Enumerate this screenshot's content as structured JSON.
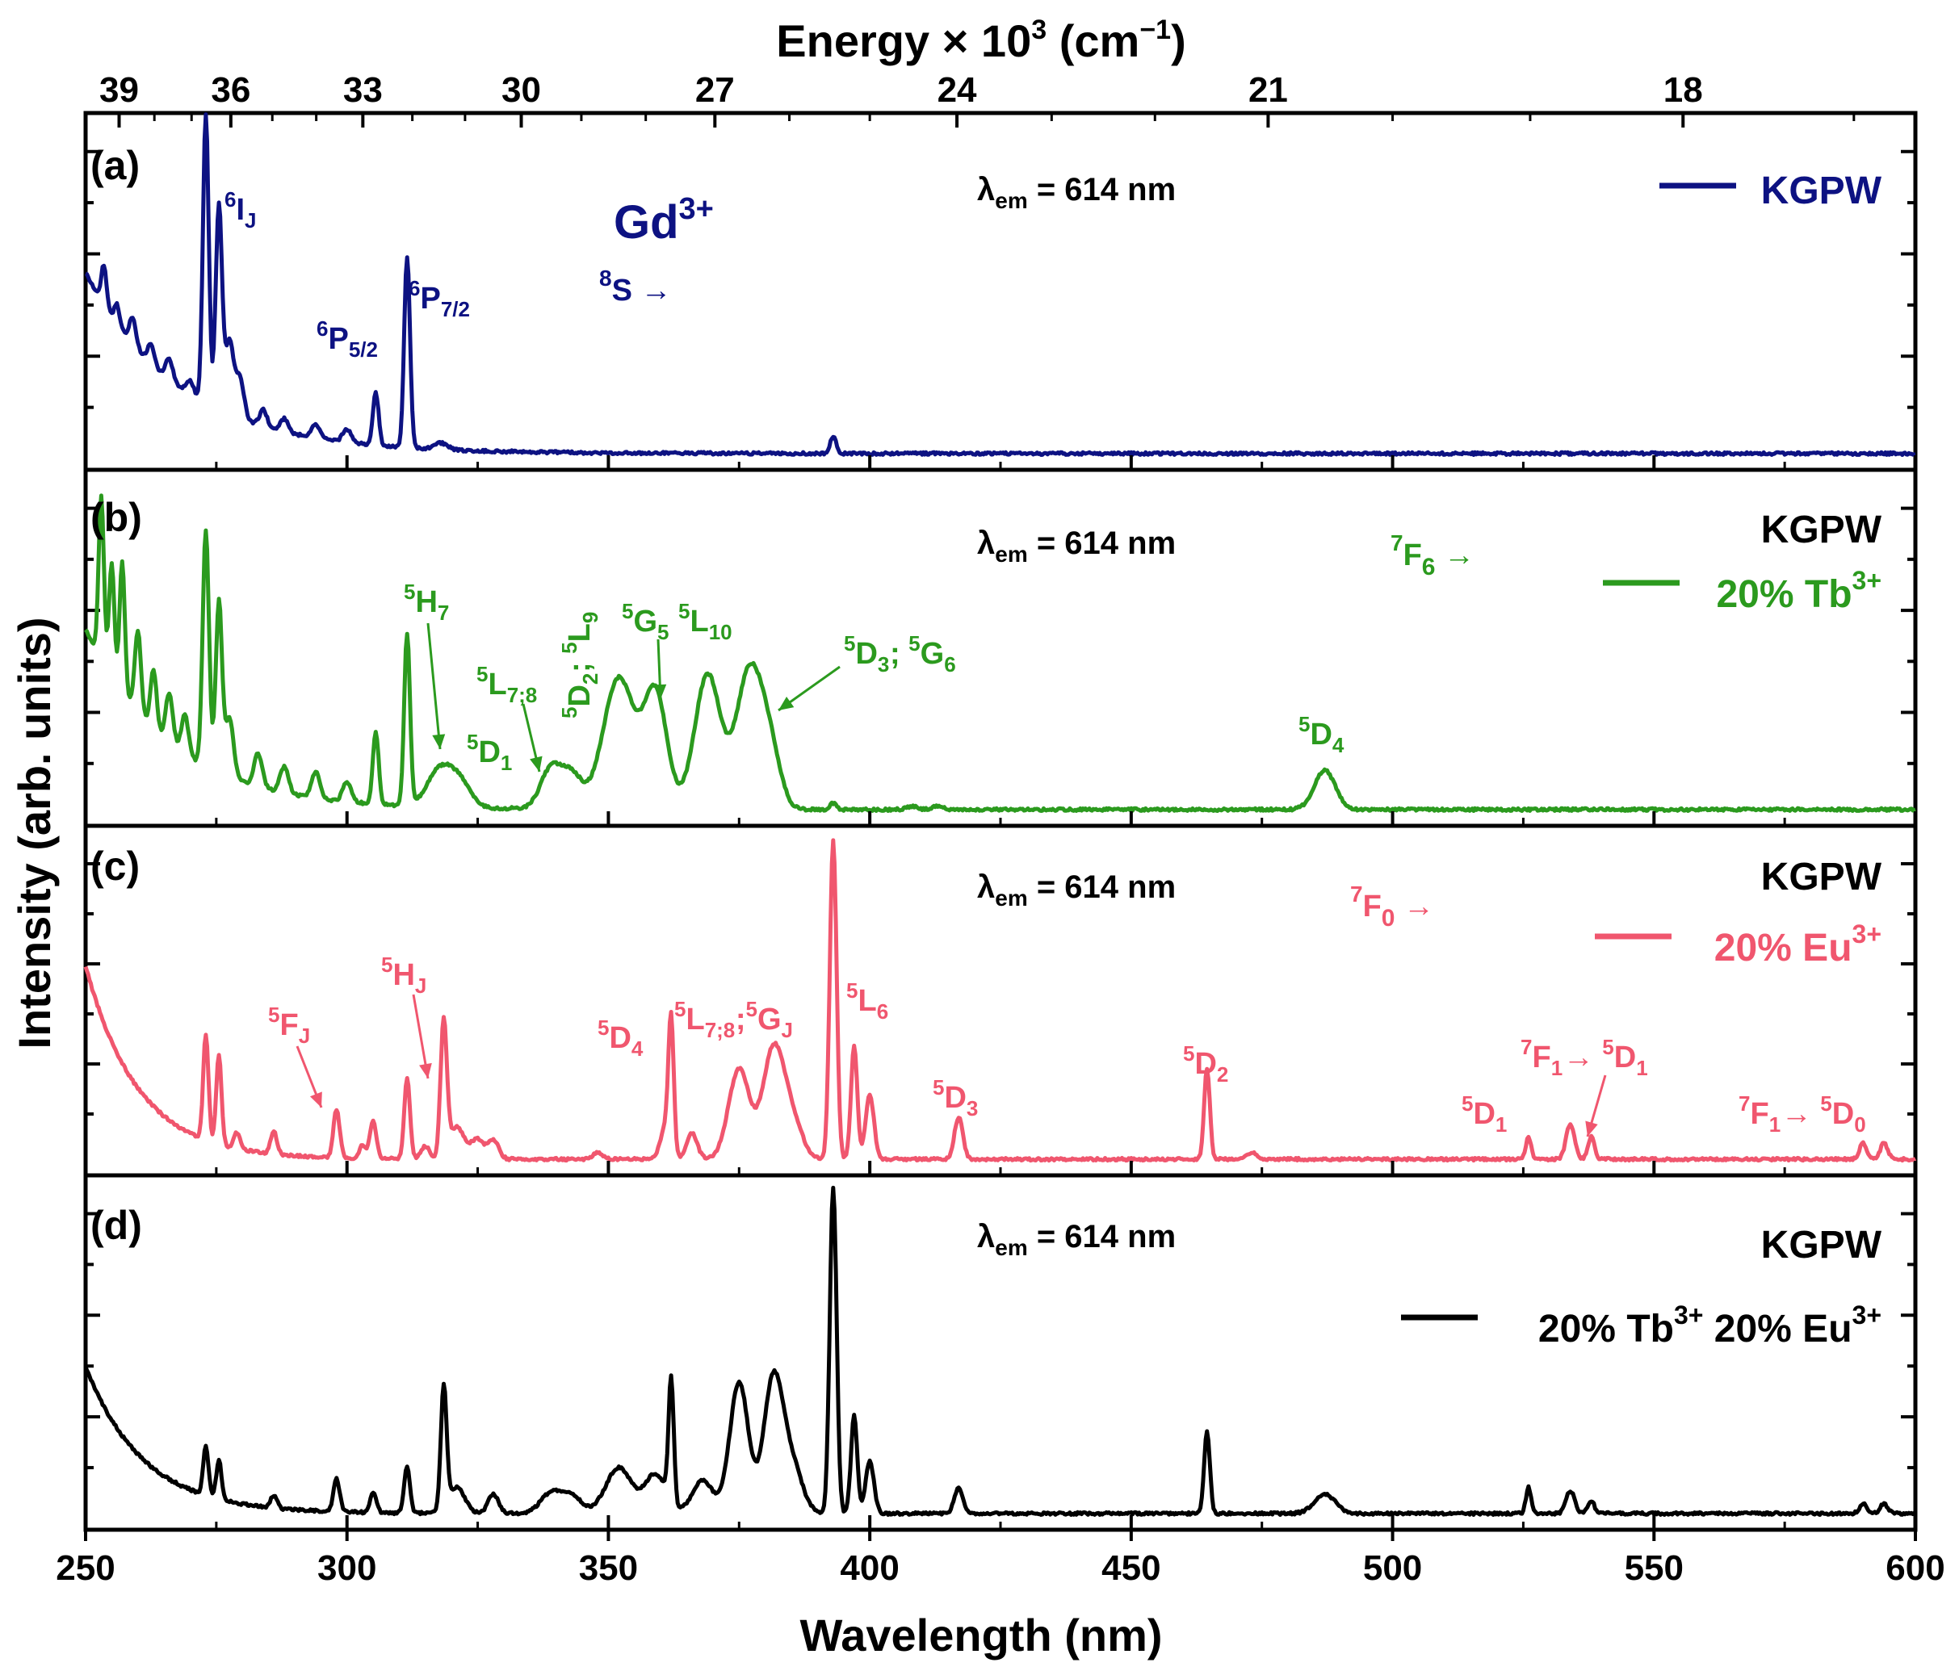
{
  "chart_data": {
    "type": "line",
    "xlabel": "Wavelength (nm)",
    "x_ticks": [
      250,
      300,
      350,
      400,
      450,
      500,
      550,
      600
    ],
    "xlim": [
      250,
      600
    ],
    "top_axis": {
      "label": "Energy × 10",
      "label_sup": "3",
      "label_unit_open": " (cm",
      "label_unit_sup": "−1",
      "label_unit_close": ")",
      "ticks": [
        39,
        36,
        33,
        30,
        27,
        24,
        21,
        18
      ]
    },
    "ylabel": "Intensity (arb. units)",
    "panels": [
      {
        "id": "a",
        "label": "(a)",
        "series_name": "KGPW",
        "color": "#0d1282",
        "excitation_note": "λem = 614 nm",
        "ion_label": "Gd3+",
        "transition_origin": "8S →",
        "baseline": 0.02,
        "decay": {
          "amp": 0.55,
          "tau": 18
        },
        "peaks": [
          [
            273,
            0.88,
            0.55
          ],
          [
            275.5,
            0.62,
            0.6
          ],
          [
            277.5,
            0.22,
            0.8
          ],
          [
            279.5,
            0.12,
            0.8
          ],
          [
            305.5,
            0.16,
            0.55
          ],
          [
            311.5,
            0.58,
            0.55
          ],
          [
            393,
            0.05,
            0.6
          ],
          [
            253.5,
            0.12,
            0.5
          ],
          [
            256,
            0.06,
            0.5
          ],
          [
            259,
            0.08,
            0.6
          ],
          [
            262.5,
            0.06,
            0.6
          ],
          [
            266,
            0.06,
            0.7
          ],
          [
            270,
            0.04,
            0.7
          ],
          [
            284,
            0.05,
            0.7
          ],
          [
            288,
            0.04,
            0.7
          ],
          [
            294,
            0.04,
            0.8
          ],
          [
            300,
            0.04,
            0.8
          ],
          [
            318,
            0.02,
            1.2
          ]
        ],
        "annotations": [
          {
            "key": "6IJ",
            "pre": "6",
            "main": "I",
            "sub": "J"
          },
          {
            "key": "6P5/2",
            "pre": "6",
            "main": "P",
            "sub": "5/2"
          },
          {
            "key": "6P7/2",
            "pre": "6",
            "main": "P",
            "sub": "7/2"
          }
        ]
      },
      {
        "id": "b",
        "label": "(b)",
        "series_name": "KGPW",
        "legend_label": "20% Tb3+",
        "color": "#2b9a1e",
        "excitation_note": "λem = 614 nm",
        "transition_origin": "7F6 →",
        "baseline": 0.02,
        "decay": {
          "amp": 0.55,
          "tau": 16
        },
        "peaks": [
          [
            273,
            0.72,
            0.6
          ],
          [
            275.5,
            0.52,
            0.6
          ],
          [
            277.5,
            0.18,
            0.8
          ],
          [
            305.5,
            0.22,
            0.55
          ],
          [
            311.5,
            0.52,
            0.55
          ],
          [
            318,
            0.12,
            2.5
          ],
          [
            322,
            0.06,
            2
          ],
          [
            339,
            0.12,
            2
          ],
          [
            343,
            0.1,
            2
          ],
          [
            352,
            0.4,
            3
          ],
          [
            359,
            0.35,
            2.2
          ],
          [
            369,
            0.41,
            2.5
          ],
          [
            377,
            0.42,
            2.5
          ],
          [
            381,
            0.15,
            2
          ],
          [
            393,
            0.02,
            0.6
          ],
          [
            487,
            0.12,
            2.0
          ],
          [
            408,
            0.01,
            1
          ],
          [
            413,
            0.01,
            1
          ],
          [
            253,
            0.5,
            0.5
          ],
          [
            255,
            0.35,
            0.5
          ],
          [
            257,
            0.4,
            0.5
          ],
          [
            260,
            0.25,
            0.6
          ],
          [
            263,
            0.18,
            0.6
          ],
          [
            266,
            0.15,
            0.7
          ],
          [
            269,
            0.12,
            0.7
          ],
          [
            283,
            0.1,
            0.8
          ],
          [
            288,
            0.08,
            0.8
          ],
          [
            294,
            0.08,
            0.8
          ],
          [
            300,
            0.06,
            0.8
          ]
        ],
        "annotations": [
          {
            "key": "5H7",
            "pre": "5",
            "main": "H",
            "sub": "7"
          },
          {
            "key": "5L7;8",
            "pre": "5",
            "main": "L",
            "sub": "7;8"
          },
          {
            "key": "5D1",
            "pre": "5",
            "main": "D",
            "sub": "1"
          },
          {
            "key": "5D2;5L9",
            "pre": "5",
            "main": "D",
            "sub": "2",
            "mid": "; ",
            "pre2": "5",
            "main2": "L",
            "sub2": "9"
          },
          {
            "key": "5G5",
            "pre": "5",
            "main": "G",
            "sub": "5"
          },
          {
            "key": "5L10",
            "pre": "5",
            "main": "L",
            "sub": "10"
          },
          {
            "key": "5D3;5G6",
            "pre": "5",
            "main": "D",
            "sub": "3",
            "mid": "; ",
            "pre2": "5",
            "main2": "G",
            "sub2": "6"
          },
          {
            "key": "5D4",
            "pre": "5",
            "main": "D",
            "sub": "4"
          }
        ]
      },
      {
        "id": "c",
        "label": "(c)",
        "series_name": "KGPW",
        "legend_label": "20% Eu3+",
        "color": "#f0566e",
        "excitation_note": "λem = 614 nm",
        "transition_origin": "7F0 →",
        "baseline": 0.02,
        "decay": {
          "amp": 0.6,
          "tau": 10
        },
        "peaks": [
          [
            273,
            0.33,
            0.5
          ],
          [
            275.5,
            0.28,
            0.5
          ],
          [
            279,
            0.05,
            0.6
          ],
          [
            286,
            0.07,
            0.6
          ],
          [
            298,
            0.15,
            0.6
          ],
          [
            305,
            0.12,
            0.6
          ],
          [
            311.5,
            0.25,
            0.55
          ],
          [
            318.5,
            0.42,
            0.6
          ],
          [
            321,
            0.1,
            1.5
          ],
          [
            328,
            0.06,
            1
          ],
          [
            348,
            0.02,
            1
          ],
          [
            361,
            0.1,
            1
          ],
          [
            362,
            0.4,
            0.5
          ],
          [
            366,
            0.08,
            1
          ],
          [
            375,
            0.28,
            2
          ],
          [
            381.5,
            0.33,
            2
          ],
          [
            385,
            0.12,
            2
          ],
          [
            393,
            0.99,
            0.65
          ],
          [
            397,
            0.35,
            0.6
          ],
          [
            400,
            0.2,
            0.8
          ],
          [
            417,
            0.13,
            0.8
          ],
          [
            464.5,
            0.28,
            0.55
          ],
          [
            473,
            0.02,
            1
          ],
          [
            526,
            0.07,
            0.5
          ],
          [
            534,
            0.11,
            0.8
          ],
          [
            538,
            0.07,
            0.6
          ],
          [
            590,
            0.05,
            0.7
          ],
          [
            594,
            0.05,
            0.7
          ],
          [
            303,
            0.04,
            0.6
          ],
          [
            315,
            0.04,
            0.8
          ],
          [
            325,
            0.06,
            1.2
          ]
        ],
        "annotations": [
          {
            "key": "5FJ",
            "pre": "5",
            "main": "F",
            "sub": "J"
          },
          {
            "key": "5HJ",
            "pre": "5",
            "main": "H",
            "sub": "J"
          },
          {
            "key": "5D4",
            "pre": "5",
            "main": "D",
            "sub": "4"
          },
          {
            "key": "5L7;8;5GJ",
            "pre": "5",
            "main": "L",
            "sub": "7;8",
            "mid": ";",
            "pre2": "5",
            "main2": "G",
            "sub2": "J"
          },
          {
            "key": "5L6",
            "pre": "5",
            "main": "L",
            "sub": "6"
          },
          {
            "key": "5D3",
            "pre": "5",
            "main": "D",
            "sub": "3"
          },
          {
            "key": "5D2",
            "pre": "5",
            "main": "D",
            "sub": "2"
          },
          {
            "key": "5D1",
            "pre": "5",
            "main": "D",
            "sub": "1"
          },
          {
            "key": "7F1-5D1",
            "pre": "7",
            "main": "F",
            "sub": "1",
            "mid": " → ",
            "pre2": "5",
            "main2": "D",
            "sub2": "1"
          },
          {
            "key": "7F1-5D0",
            "pre": "7",
            "main": "F",
            "sub": "1",
            "mid": " → ",
            "pre2": "5",
            "main2": "D",
            "sub2": "0"
          }
        ]
      },
      {
        "id": "d",
        "label": "(d)",
        "series_name": "KGPW",
        "legend_label": "20% Tb3+ 20% Eu3+",
        "color": "#000000",
        "excitation_note": "λem = 614 nm",
        "baseline": 0.02,
        "decay": {
          "amp": 0.45,
          "tau": 11
        },
        "peaks": [
          [
            273,
            0.15,
            0.5
          ],
          [
            275.5,
            0.12,
            0.5
          ],
          [
            286,
            0.04,
            0.6
          ],
          [
            298,
            0.1,
            0.6
          ],
          [
            305,
            0.06,
            0.6
          ],
          [
            311.5,
            0.14,
            0.55
          ],
          [
            318.5,
            0.38,
            0.55
          ],
          [
            321,
            0.08,
            1.5
          ],
          [
            328,
            0.06,
            1
          ],
          [
            339,
            0.06,
            2
          ],
          [
            343,
            0.05,
            2
          ],
          [
            352,
            0.14,
            2.5
          ],
          [
            359,
            0.12,
            2
          ],
          [
            362,
            0.38,
            0.5
          ],
          [
            368,
            0.1,
            2
          ],
          [
            375,
            0.4,
            1.8
          ],
          [
            381.5,
            0.4,
            1.8
          ],
          [
            385,
            0.15,
            2
          ],
          [
            393,
            1.0,
            0.65
          ],
          [
            397,
            0.3,
            0.6
          ],
          [
            400,
            0.16,
            0.8
          ],
          [
            417,
            0.08,
            0.8
          ],
          [
            464.5,
            0.25,
            0.55
          ],
          [
            487,
            0.06,
            2
          ],
          [
            526,
            0.08,
            0.5
          ],
          [
            534,
            0.07,
            0.8
          ],
          [
            538,
            0.04,
            0.6
          ],
          [
            590,
            0.03,
            0.7
          ],
          [
            594,
            0.03,
            0.7
          ]
        ],
        "annotations": []
      }
    ]
  }
}
